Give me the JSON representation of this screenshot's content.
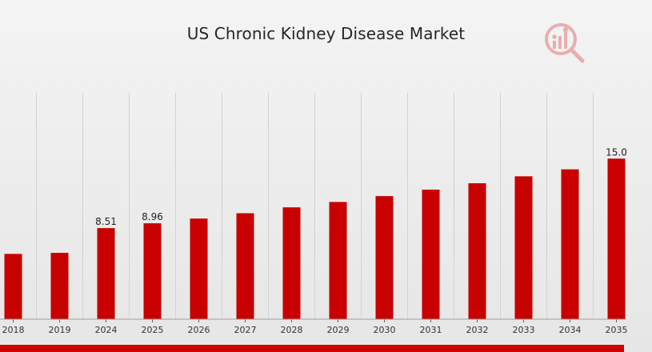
{
  "chart_data": {
    "type": "bar",
    "title": "US Chronic Kidney Disease Market",
    "categories": [
      "2018",
      "2019",
      "2024",
      "2025",
      "2026",
      "2027",
      "2028",
      "2029",
      "2030",
      "2031",
      "2032",
      "2033",
      "2034",
      "2035"
    ],
    "values": [
      6.1,
      6.2,
      8.51,
      8.96,
      9.4,
      9.9,
      10.45,
      10.95,
      11.5,
      12.1,
      12.7,
      13.35,
      14.0,
      15.0
    ],
    "data_labels": [
      "",
      "",
      "8.51",
      "8.96",
      "",
      "",
      "",
      "",
      "",
      "",
      "",
      "",
      "",
      "15.0"
    ],
    "xlabel": "",
    "ylabel": "",
    "ylim": [
      0,
      21.3
    ],
    "grid": "vertical",
    "legend": "none",
    "bar_color": "#c80000",
    "grid_color": "#d2d2d2",
    "axis_color": "#9e9e9e",
    "tick_color": "#666666"
  },
  "brand": {
    "logo_icon": "market-research-logo-icon",
    "band_color": "#cc0000"
  }
}
